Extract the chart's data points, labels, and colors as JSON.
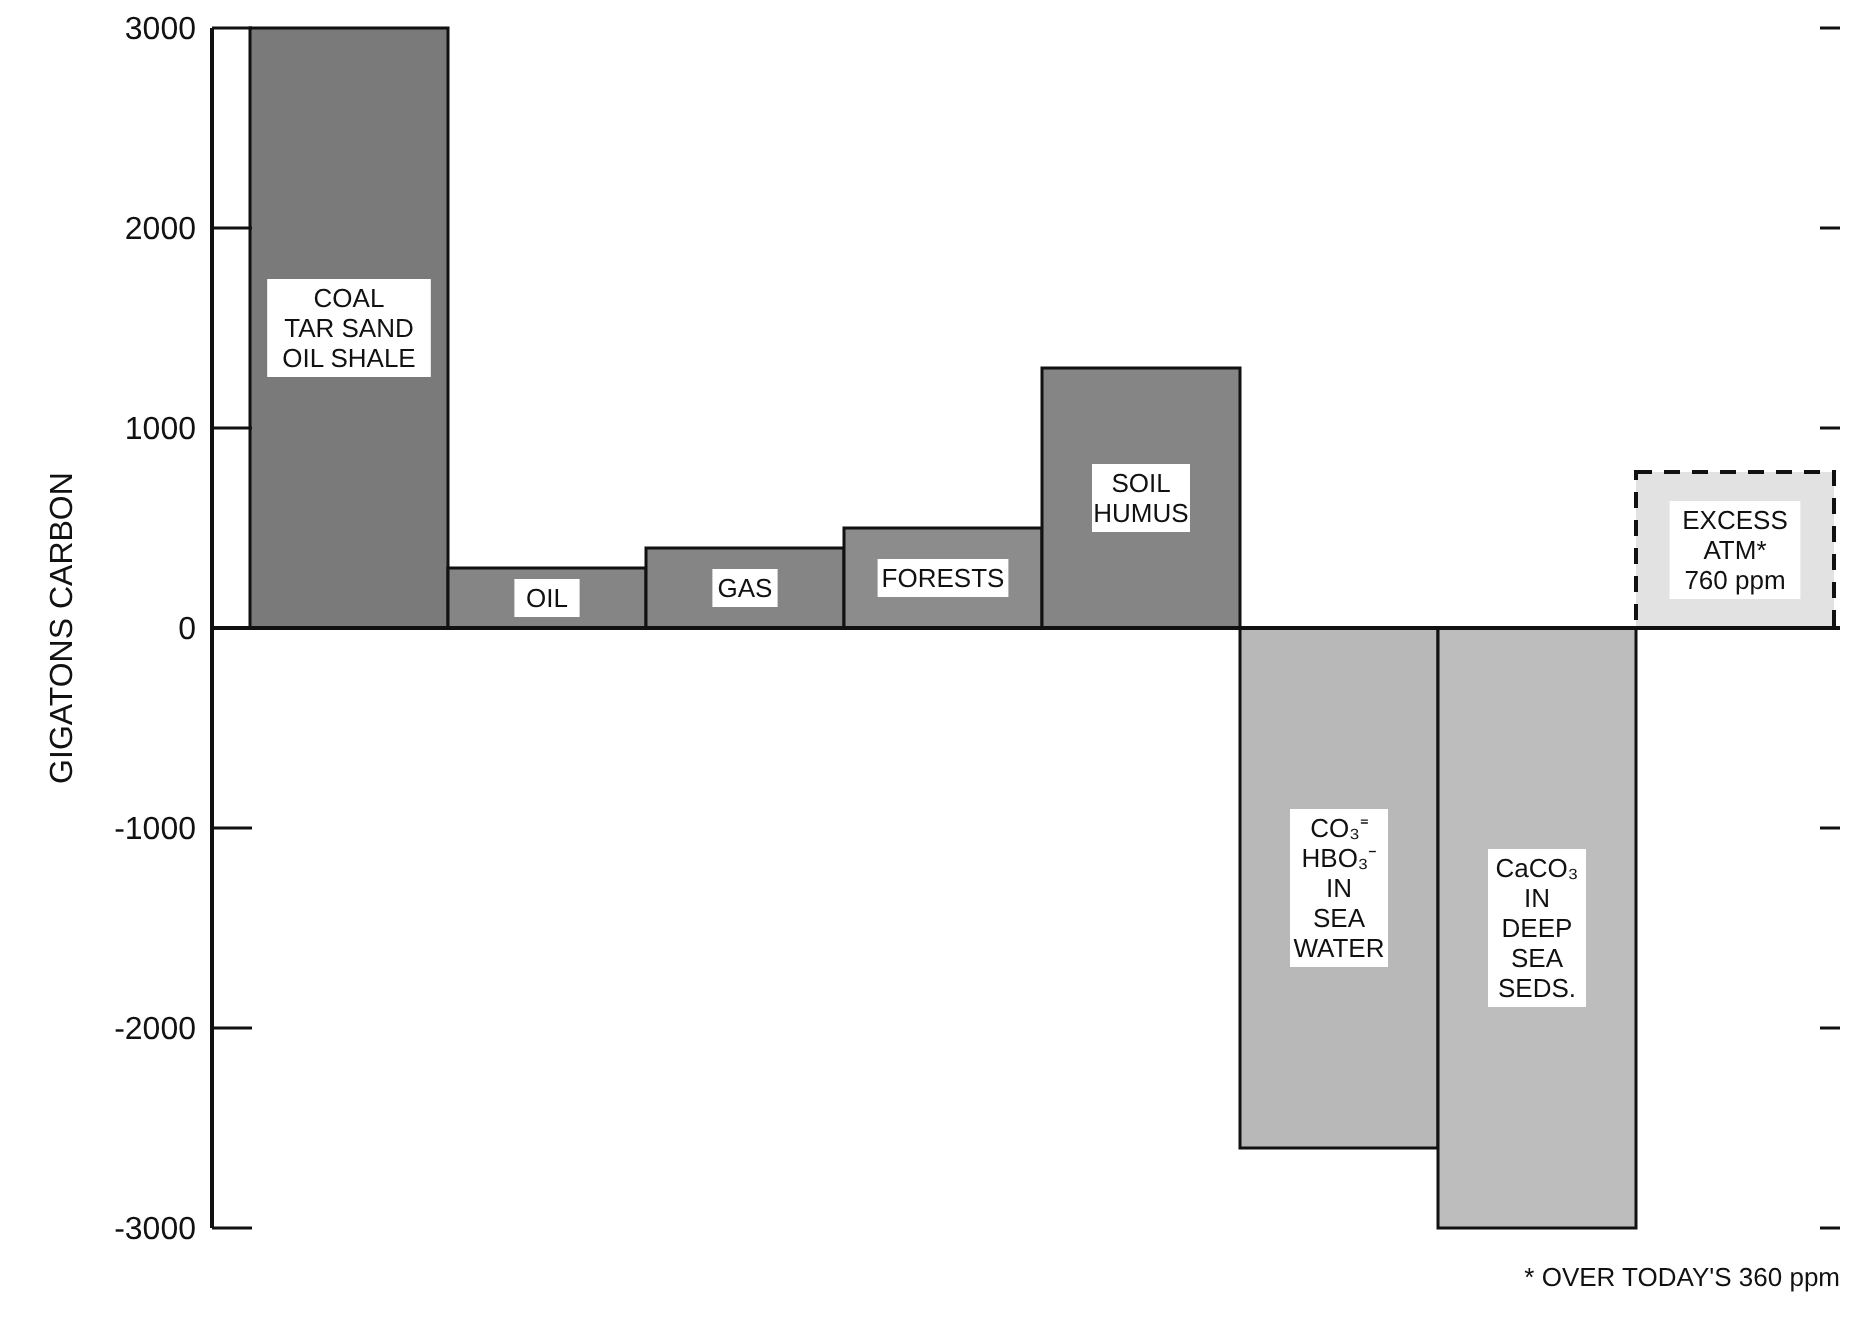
{
  "chart_data": {
    "type": "bar",
    "ylabel": "GIGATONS CARBON",
    "categories": [
      "COAL\nTAR SAND\nOIL SHALE",
      "OIL",
      "GAS",
      "FORESTS",
      "SOIL\nHUMUS",
      "CO₃⁼\nHBO₃⁻\nIN\nSEA\nWATER",
      "CaCO₃\nIN\nDEEP\nSEA\nSEDS.",
      "EXCESS\nATM*\n760 ppm"
    ],
    "series": [
      {
        "colors": [
          "#7a7a7a",
          "#858585",
          "#858585",
          "#8c8c8c",
          "#858585",
          "#b8b8b8",
          "#bdbdbd",
          null
        ],
        "values": [
          3000,
          300,
          400,
          500,
          1300,
          -2600,
          -3000,
          null
        ],
        "line_style": "solid"
      },
      {
        "color": "#e2e2e2",
        "values": [
          null,
          null,
          null,
          null,
          null,
          null,
          null,
          780
        ],
        "line_style": "dashed"
      }
    ],
    "ylim": [
      -3000,
      3000
    ],
    "yticks": [
      -3000,
      -2000,
      -1000,
      0,
      1000,
      2000,
      3000
    ],
    "annotations": [
      "* OVER TODAY'S 360 ppm"
    ]
  }
}
